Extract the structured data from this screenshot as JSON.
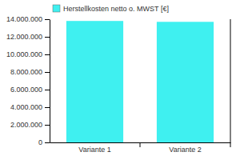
{
  "chart_data": {
    "type": "bar",
    "categories": [
      "Variante 1",
      "Variante 2"
    ],
    "series": [
      {
        "name": "Herstellkosten netto o. MWST [€]",
        "color": "#3ff0f0",
        "values": [
          13800000,
          13700000
        ]
      }
    ],
    "ylim": [
      0,
      14000000
    ],
    "yticks": [
      0,
      {
        "value": 2000000,
        "label": "2.000.000"
      },
      {
        "value": 4000000,
        "label": "4.000.000"
      },
      {
        "value": 6000000,
        "label": "6.000.000"
      },
      {
        "value": 8000000,
        "label": "8.000.000"
      },
      {
        "value": 10000000,
        "label": "10.000.000"
      },
      {
        "value": 12000000,
        "label": "12.000.000"
      },
      {
        "value": 14000000,
        "label": "14.000.000"
      }
    ],
    "legend": "top-left",
    "grid": false
  }
}
